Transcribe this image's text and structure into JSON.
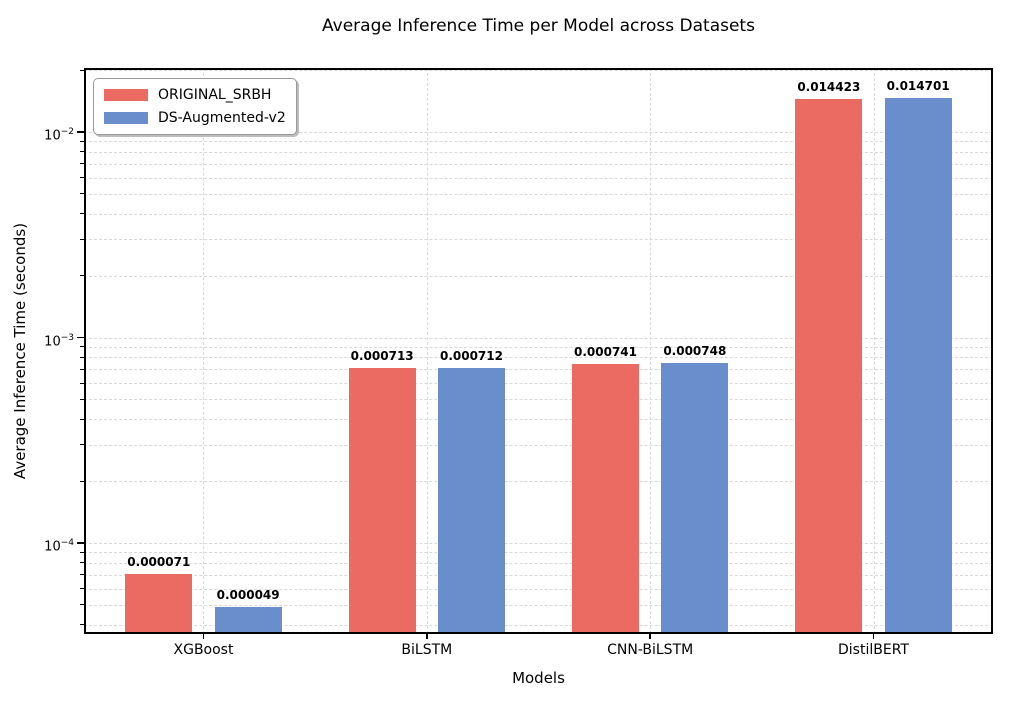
{
  "chart_data": {
    "type": "bar",
    "title": "Average Inference Time per Model across Datasets",
    "xlabel": "Models",
    "ylabel": "Average Inference Time (seconds)",
    "yscale": "log",
    "ylim": [
      3.61e-05,
      0.0205
    ],
    "ytick_exponents": [
      -2,
      -3,
      -4
    ],
    "ytick_labels": [
      "10^-2",
      "10^-3",
      "10^-4"
    ],
    "grid": true,
    "legend_position": "upper-left",
    "categories": [
      "XGBoost",
      "BiLSTM",
      "CNN-BiLSTM",
      "DistilBERT"
    ],
    "series": [
      {
        "name": "ORIGINAL_SRBH",
        "color": "#EB6A62",
        "values": [
          7.1e-05,
          0.000713,
          0.000741,
          0.014423
        ],
        "bar_labels": [
          "0.000071",
          "0.000713",
          "0.000741",
          "0.014423"
        ]
      },
      {
        "name": "DS-Augmented-v2",
        "color": "#6A8DCB",
        "values": [
          4.9e-05,
          0.000712,
          0.000748,
          0.014701
        ],
        "bar_labels": [
          "0.000049",
          "0.000712",
          "0.000748",
          "0.014701"
        ]
      }
    ]
  }
}
